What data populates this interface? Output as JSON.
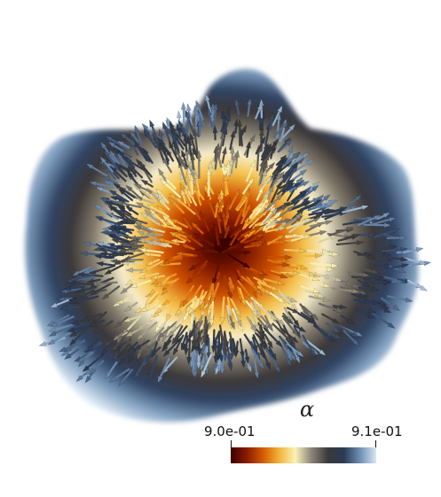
{
  "scene": {
    "description_icon": "vector-glyph-field",
    "background": "#ffffff"
  },
  "colorbar": {
    "title": "α",
    "min_label": "9.0e-01",
    "max_label": "9.1e-01",
    "min_value": 0.9,
    "max_value": 0.91,
    "colormap": [
      "#3a0000",
      "#8a1c00",
      "#d45b00",
      "#f2b43a",
      "#fbf1b6",
      "#8a8478",
      "#3b3a3a",
      "#2b3a55",
      "#6f8fb3",
      "#d8e8f4"
    ]
  }
}
